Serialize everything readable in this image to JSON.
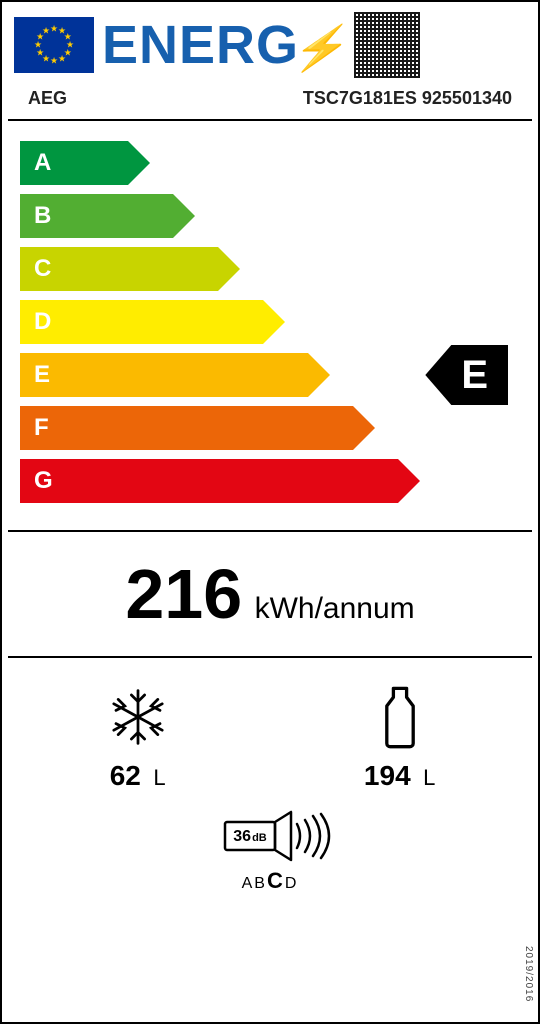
{
  "header": {
    "title": "ENERG",
    "bolt_glyph": "⚡"
  },
  "brand": "AEG",
  "model": "TSC7G181ES 925501340",
  "efficiency_scale": [
    {
      "letter": "A",
      "color": "#009640",
      "width_pct": 26
    },
    {
      "letter": "B",
      "color": "#52ae32",
      "width_pct": 35
    },
    {
      "letter": "C",
      "color": "#c8d400",
      "width_pct": 44
    },
    {
      "letter": "D",
      "color": "#ffed00",
      "width_pct": 53
    },
    {
      "letter": "E",
      "color": "#fbba00",
      "width_pct": 62
    },
    {
      "letter": "F",
      "color": "#ec6608",
      "width_pct": 71
    },
    {
      "letter": "G",
      "color": "#e30613",
      "width_pct": 80
    }
  ],
  "rating": {
    "letter": "E",
    "row_index": 4
  },
  "consumption": {
    "value": "216",
    "unit": "kWh/annum"
  },
  "compartments": {
    "freezer": {
      "value": "62",
      "unit": "L"
    },
    "fridge": {
      "value": "194",
      "unit": "L"
    }
  },
  "noise": {
    "value": "36",
    "unit": "dB",
    "classes": [
      "A",
      "B",
      "C",
      "D"
    ],
    "active_class": "C"
  },
  "regulation": "2019/2016"
}
